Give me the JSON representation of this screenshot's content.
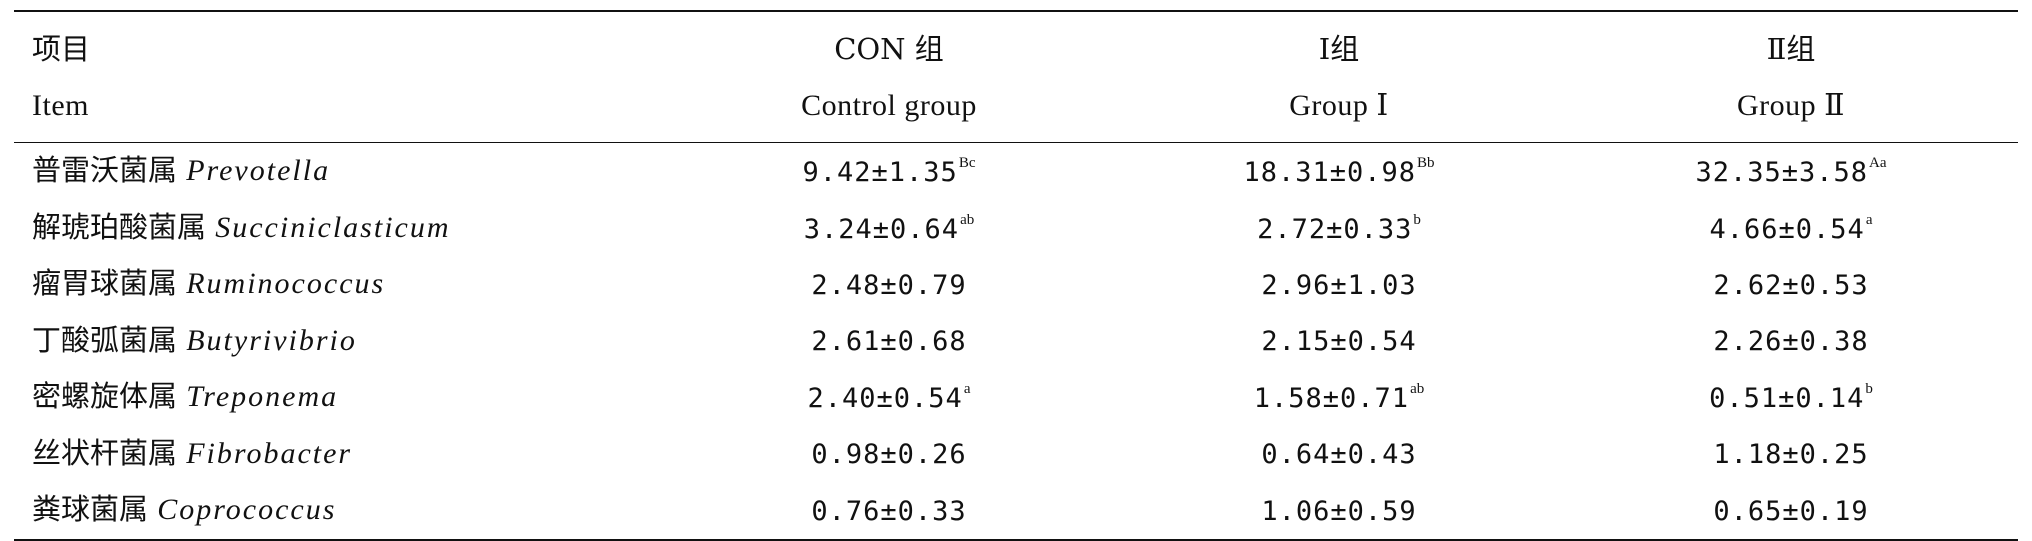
{
  "table": {
    "header": {
      "item_cn": "项目",
      "item_en": "Item",
      "groups": [
        {
          "cn": "CON 组",
          "en": "Control group"
        },
        {
          "cn": "Ⅰ组",
          "en": "Group Ⅰ"
        },
        {
          "cn": "Ⅱ组",
          "en": "Group Ⅱ"
        }
      ]
    },
    "rows": [
      {
        "cn": "普雷沃菌属",
        "latin": "Prevotella",
        "values": [
          {
            "v": "9.42±1.35",
            "sup": "Bc"
          },
          {
            "v": "18.31±0.98",
            "sup": "Bb"
          },
          {
            "v": "32.35±3.58",
            "sup": "Aa"
          }
        ]
      },
      {
        "cn": "解琥珀酸菌属",
        "latin": "Succiniclasticum",
        "values": [
          {
            "v": "3.24±0.64",
            "sup": "ab"
          },
          {
            "v": "2.72±0.33",
            "sup": "b"
          },
          {
            "v": "4.66±0.54",
            "sup": "a"
          }
        ]
      },
      {
        "cn": "瘤胃球菌属",
        "latin": "Ruminococcus",
        "values": [
          {
            "v": "2.48±0.79",
            "sup": ""
          },
          {
            "v": "2.96±1.03",
            "sup": ""
          },
          {
            "v": "2.62±0.53",
            "sup": ""
          }
        ]
      },
      {
        "cn": "丁酸弧菌属",
        "latin": "Butyrivibrio",
        "values": [
          {
            "v": "2.61±0.68",
            "sup": ""
          },
          {
            "v": "2.15±0.54",
            "sup": ""
          },
          {
            "v": "2.26±0.38",
            "sup": ""
          }
        ]
      },
      {
        "cn": "密螺旋体属",
        "latin": "Treponema",
        "values": [
          {
            "v": "2.40±0.54",
            "sup": "a"
          },
          {
            "v": "1.58±0.71",
            "sup": "ab"
          },
          {
            "v": "0.51±0.14",
            "sup": "b"
          }
        ]
      },
      {
        "cn": "丝状杆菌属",
        "latin": "Fibrobacter",
        "values": [
          {
            "v": "0.98±0.26",
            "sup": ""
          },
          {
            "v": "0.64±0.43",
            "sup": ""
          },
          {
            "v": "1.18±0.25",
            "sup": ""
          }
        ]
      },
      {
        "cn": "粪球菌属",
        "latin": "Coprococcus",
        "values": [
          {
            "v": "0.76±0.33",
            "sup": ""
          },
          {
            "v": "1.06±0.59",
            "sup": ""
          },
          {
            "v": "0.65±0.19",
            "sup": ""
          }
        ]
      }
    ]
  }
}
